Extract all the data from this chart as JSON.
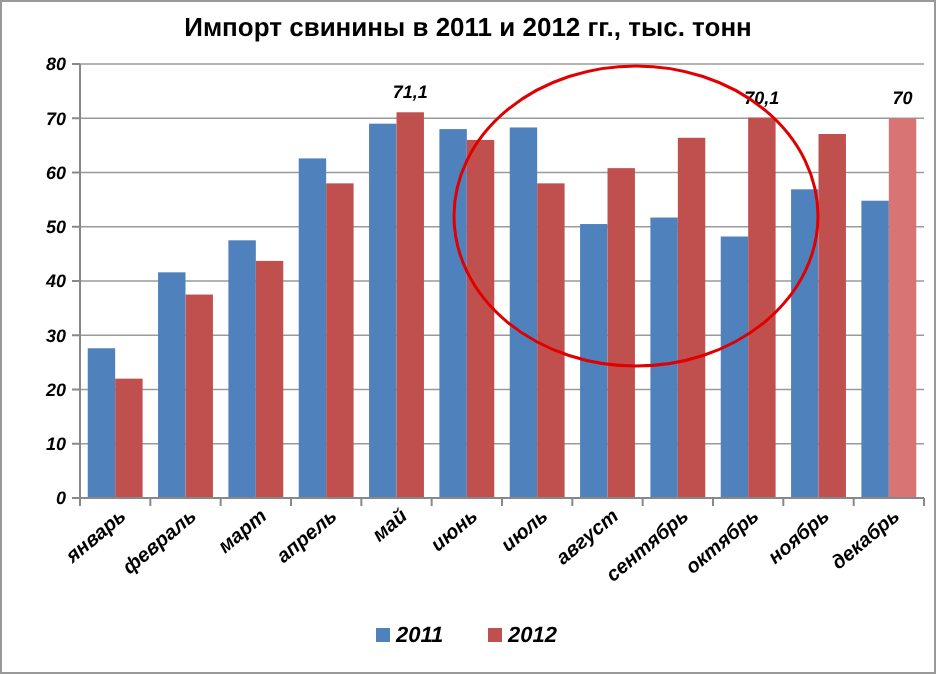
{
  "chart_data": {
    "type": "bar",
    "title": "Импорт свинины в 2011 и 2012 гг., тыс. тонн",
    "categories": [
      "январь",
      "февраль",
      "март",
      "апрель",
      "май",
      "июнь",
      "июль",
      "август",
      "сентябрь",
      "октябрь",
      "ноябрь",
      "декабрь"
    ],
    "series": [
      {
        "name": "2011",
        "color": "#4f81bd",
        "values": [
          27.6,
          41.6,
          47.5,
          62.6,
          69,
          68,
          68.3,
          50.5,
          51.7,
          48.2,
          56.9,
          54.8
        ]
      },
      {
        "name": "2012",
        "color": "#c0504d",
        "colors": [
          "#c0504d",
          "#c0504d",
          "#c0504d",
          "#c0504d",
          "#c0504d",
          "#c0504d",
          "#c0504d",
          "#c0504d",
          "#c0504d",
          "#c0504d",
          "#c0504d",
          "#d97474"
        ],
        "values": [
          22,
          37.5,
          43.7,
          58,
          71.1,
          66,
          58,
          60.8,
          66.4,
          70.1,
          67.1,
          70
        ],
        "value_labels": [
          null,
          null,
          null,
          null,
          "71,1",
          null,
          null,
          null,
          null,
          "70,1",
          null,
          "70"
        ]
      }
    ],
    "ylim": [
      0,
      80
    ],
    "yticks": [
      0,
      10,
      20,
      30,
      40,
      50,
      60,
      70,
      80
    ],
    "grid": "y",
    "legend": "bottom"
  }
}
